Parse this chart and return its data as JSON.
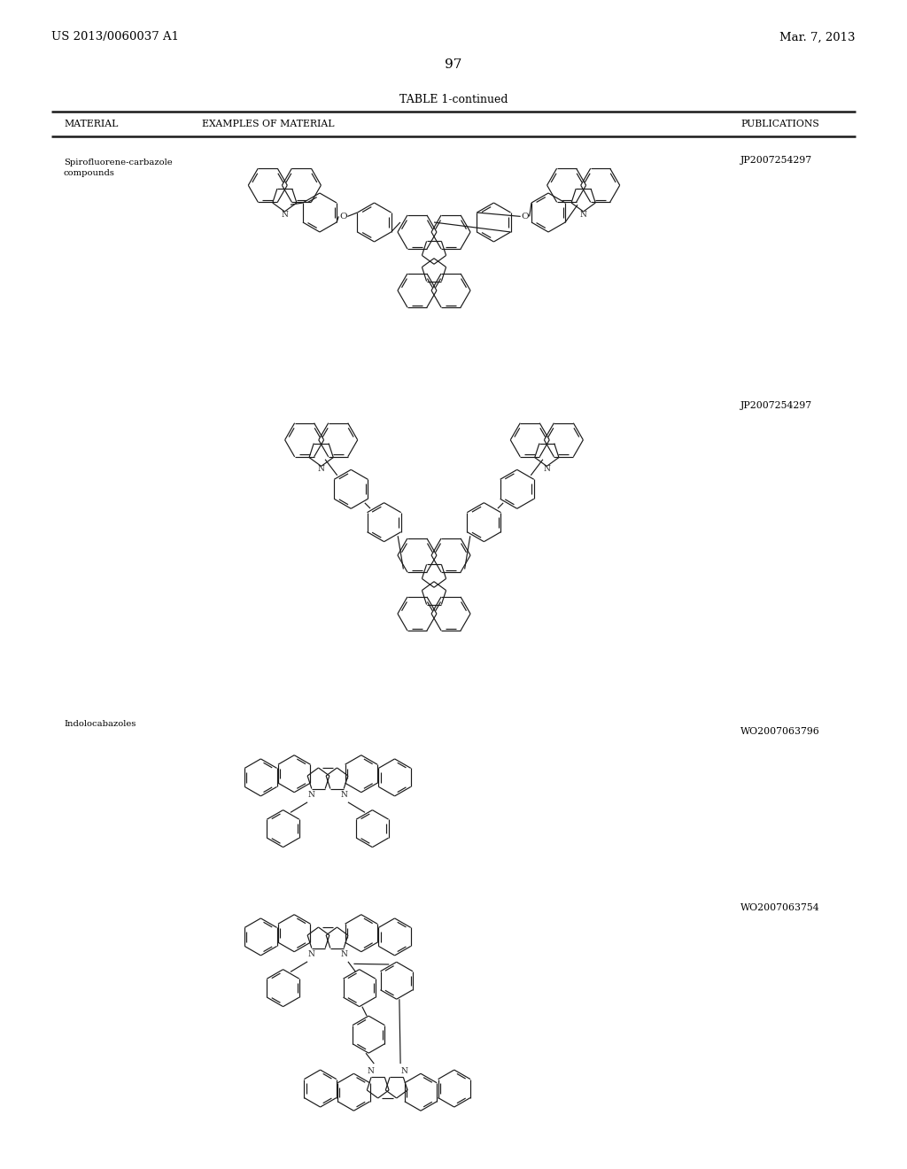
{
  "background_color": "#ffffff",
  "page_header_left": "US 2013/0060037 A1",
  "page_header_right": "Mar. 7, 2013",
  "page_number": "97",
  "table_title": "TABLE 1-continued",
  "col1_header": "MATERIAL",
  "col2_header": "EXAMPLES OF MATERIAL",
  "col3_header": "PUBLICATIONS",
  "row1_material_1": "Spirofluorene-carbazole",
  "row1_material_2": "compounds",
  "row1_pub1": "JP2007254297",
  "row1_pub2": "JP2007254297",
  "row2_material": "Indolocabazoles",
  "row2_pub1": "WO2007063796",
  "row2_pub2": "WO2007063754"
}
